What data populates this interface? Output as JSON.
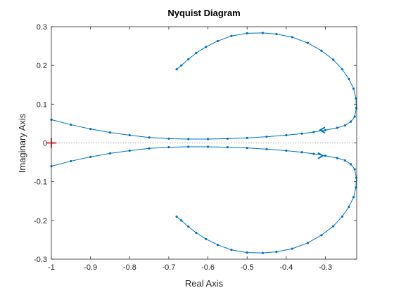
{
  "chart_data": {
    "type": "line",
    "title": "Nyquist Diagram",
    "xlabel": "Real Axis",
    "ylabel": "Imaginary Axis",
    "xlim": [
      -1,
      -0.22
    ],
    "ylim": [
      -0.3,
      0.3
    ],
    "xticks": [
      -1,
      -0.9,
      -0.8,
      -0.7,
      -0.6,
      -0.5,
      -0.4,
      -0.3
    ],
    "xtick_labels": [
      "-1",
      "-0.9",
      "-0.8",
      "-0.7",
      "-0.6",
      "-0.5",
      "-0.4",
      "-0.3"
    ],
    "yticks": [
      -0.3,
      -0.2,
      -0.1,
      0,
      0.1,
      0.2,
      0.3
    ],
    "ytick_labels": [
      "-0.3",
      "-0.2",
      "-0.1",
      "0",
      "0.1",
      "0.2",
      "0.3"
    ],
    "grid": false,
    "series_color": "#0072bd",
    "critical_point": {
      "x": -1,
      "y": 0,
      "marker": "+",
      "color": "#ff3333"
    },
    "zero_line": {
      "y": 0,
      "style": "dotted",
      "color": "#808080"
    },
    "series": [
      {
        "branch": "positive frequency",
        "x": [
          -1.0,
          -0.95,
          -0.9,
          -0.85,
          -0.8,
          -0.75,
          -0.7,
          -0.65,
          -0.6,
          -0.55,
          -0.5,
          -0.45,
          -0.4,
          -0.36,
          -0.33,
          -0.3,
          -0.27,
          -0.25,
          -0.235,
          -0.225,
          -0.221,
          -0.222,
          -0.228,
          -0.24,
          -0.257,
          -0.28,
          -0.31,
          -0.345,
          -0.385,
          -0.425,
          -0.46,
          -0.5,
          -0.54,
          -0.575,
          -0.605,
          -0.63,
          -0.65,
          -0.668,
          -0.68
        ],
        "y": [
          0.06,
          0.047,
          0.036,
          0.027,
          0.02,
          0.014,
          0.011,
          0.01,
          0.01,
          0.011,
          0.013,
          0.016,
          0.02,
          0.024,
          0.028,
          0.033,
          0.039,
          0.045,
          0.055,
          0.068,
          0.09,
          0.115,
          0.14,
          0.165,
          0.19,
          0.215,
          0.238,
          0.258,
          0.273,
          0.281,
          0.284,
          0.283,
          0.276,
          0.263,
          0.248,
          0.232,
          0.216,
          0.2,
          0.19
        ]
      },
      {
        "branch": "negative frequency",
        "x": [
          -1.0,
          -0.95,
          -0.9,
          -0.85,
          -0.8,
          -0.75,
          -0.7,
          -0.65,
          -0.6,
          -0.55,
          -0.5,
          -0.45,
          -0.4,
          -0.36,
          -0.33,
          -0.3,
          -0.27,
          -0.25,
          -0.235,
          -0.225,
          -0.221,
          -0.222,
          -0.228,
          -0.24,
          -0.257,
          -0.28,
          -0.31,
          -0.345,
          -0.385,
          -0.425,
          -0.46,
          -0.5,
          -0.54,
          -0.575,
          -0.605,
          -0.63,
          -0.65,
          -0.668,
          -0.68
        ],
        "y": [
          -0.06,
          -0.047,
          -0.036,
          -0.027,
          -0.02,
          -0.014,
          -0.011,
          -0.01,
          -0.01,
          -0.011,
          -0.013,
          -0.016,
          -0.02,
          -0.024,
          -0.028,
          -0.033,
          -0.039,
          -0.045,
          -0.055,
          -0.068,
          -0.09,
          -0.115,
          -0.14,
          -0.165,
          -0.19,
          -0.215,
          -0.238,
          -0.258,
          -0.273,
          -0.281,
          -0.284,
          -0.283,
          -0.276,
          -0.263,
          -0.248,
          -0.232,
          -0.216,
          -0.2,
          -0.19
        ]
      }
    ],
    "arrows": [
      {
        "x": -0.31,
        "y": 0.033,
        "direction": "toward-left"
      },
      {
        "x": -0.31,
        "y": -0.033,
        "direction": "toward-right"
      }
    ]
  }
}
